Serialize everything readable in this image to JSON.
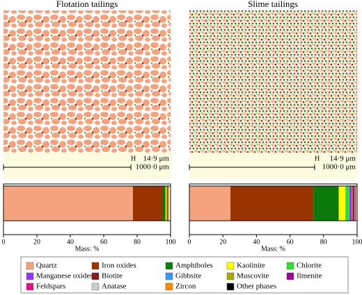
{
  "chart_data": {
    "type": "stacked-bar-h",
    "categories": [
      "Flotation tailings",
      "Slime tailings"
    ],
    "xlabel": "Mass: %",
    "xlim": [
      0,
      100
    ],
    "xticks": [
      0,
      20,
      40,
      60,
      80,
      100
    ],
    "series": [
      {
        "name": "Quartz",
        "color": "#f5a37f",
        "values": [
          77.5,
          24.5
        ]
      },
      {
        "name": "Iron oxides",
        "color": "#993300",
        "values": [
          17.5,
          49.5
        ]
      },
      {
        "name": "Amphiboles",
        "color": "#0b7a0b",
        "values": [
          2,
          15
        ]
      },
      {
        "name": "Kaolinite",
        "color": "#ffff00",
        "values": [
          0.5,
          4
        ]
      },
      {
        "name": "Chlorite",
        "color": "#33dd33",
        "values": [
          0.5,
          2.5
        ]
      },
      {
        "name": "Manganese oxides",
        "color": "#9933ff",
        "values": [
          0,
          0.5
        ]
      },
      {
        "name": "Biotite",
        "color": "#8b1a1a",
        "values": [
          0.5,
          0.5
        ]
      },
      {
        "name": "Gibbsite",
        "color": "#3399ff",
        "values": [
          0,
          0.3
        ]
      },
      {
        "name": "Muscovite",
        "color": "#aaaa00",
        "values": [
          0.5,
          0.5
        ]
      },
      {
        "name": "Ilmenite",
        "color": "#990099",
        "values": [
          0,
          1
        ]
      },
      {
        "name": "Feldspars",
        "color": "#dd1188",
        "values": [
          0,
          0.3
        ]
      },
      {
        "name": "Anatase",
        "color": "#cccccc",
        "values": [
          0,
          0.2
        ]
      },
      {
        "name": "Zircon",
        "color": "#ff8800",
        "values": [
          0,
          0.2
        ]
      },
      {
        "name": "Other phases",
        "color": "#000000",
        "values": [
          0,
          0.3
        ]
      }
    ]
  },
  "images": [
    {
      "marker": "H",
      "scale_small": "14·9 μm",
      "scale_large": "1000·0 μm"
    },
    {
      "marker": "H",
      "scale_small": "14·9 μm",
      "scale_large": "1000·0 μm"
    }
  ]
}
